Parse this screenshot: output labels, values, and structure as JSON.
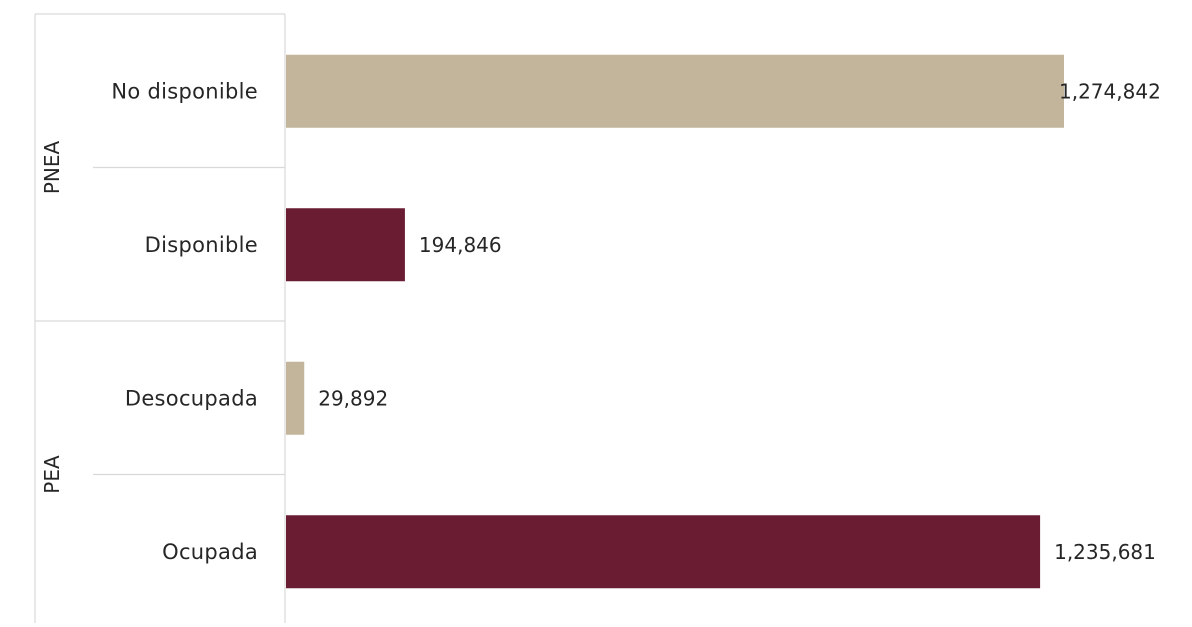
{
  "chart_data": {
    "type": "bar",
    "orientation": "horizontal",
    "groups": [
      {
        "name": "PNEA",
        "bars": [
          {
            "category": "No disponible",
            "value": 1274842,
            "label": "1,274,842",
            "color": "#c2b59b"
          },
          {
            "category": "Disponible",
            "value": 194846,
            "label": "194,846",
            "color": "#691c32"
          }
        ]
      },
      {
        "name": "PEA",
        "bars": [
          {
            "category": "Desocupada",
            "value": 29892,
            "label": "29,892",
            "color": "#c2b59b"
          },
          {
            "category": "Ocupada",
            "value": 1235681,
            "label": "1,235,681",
            "color": "#691c32"
          }
        ]
      }
    ],
    "xlim": [
      0,
      1290000
    ],
    "grid": false,
    "legend": "none",
    "title": "",
    "xlabel": "",
    "ylabel": ""
  }
}
